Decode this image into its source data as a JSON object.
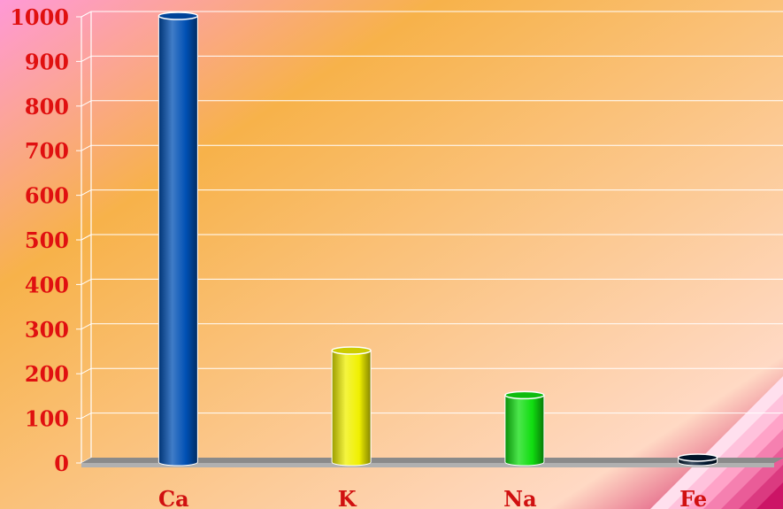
{
  "chart_data": {
    "type": "bar",
    "title": "",
    "xlabel": "",
    "ylabel": "",
    "categories": [
      "Ca",
      "K",
      "Na",
      "Fe"
    ],
    "values": [
      1000,
      250,
      150,
      10
    ],
    "ylim": [
      0,
      1000
    ],
    "yticks": [
      0,
      100,
      200,
      300,
      400,
      500,
      600,
      700,
      800,
      900,
      1000
    ],
    "ytick_labels": [
      "0",
      "100",
      "200",
      "300",
      "400",
      "500",
      "600",
      "700",
      "800",
      "900",
      "1000"
    ],
    "grid": true,
    "legend": "none",
    "bar_colors": [
      "#0050b4",
      "#f0f000",
      "#10dd10",
      "#001830"
    ],
    "tick_color": "#e01010",
    "background_colors": [
      "#ff99d6",
      "#f7b24a",
      "#ffd9c4",
      "#cc0055"
    ]
  }
}
